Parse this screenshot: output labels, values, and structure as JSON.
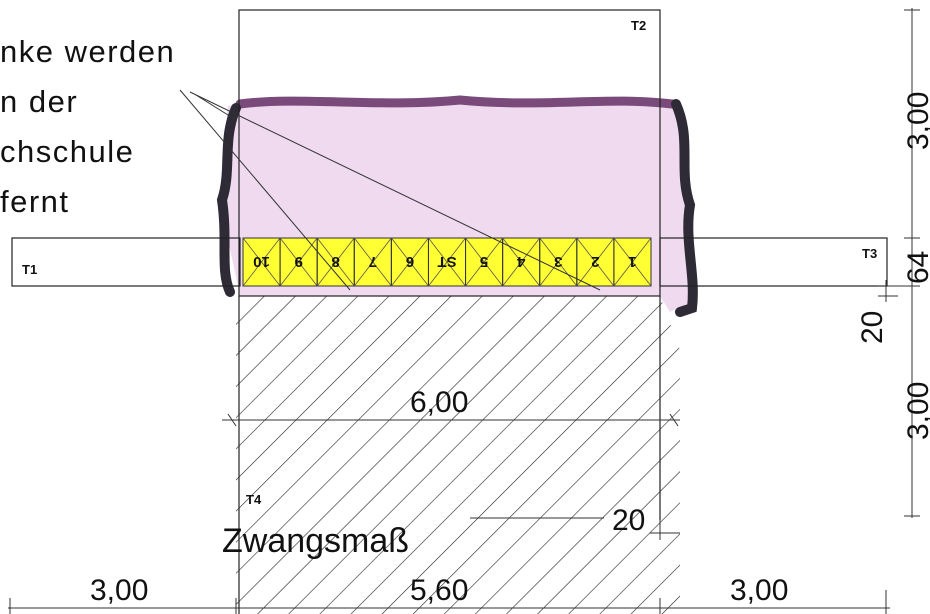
{
  "note_lines": [
    "nke werden",
    "n der",
    "chschule",
    "fernt"
  ],
  "tags": {
    "t1": "T1",
    "t2": "T2",
    "t3": "T3",
    "t4": "T4"
  },
  "cells": [
    "10",
    "9",
    "8",
    "7",
    "6",
    "ST",
    "5",
    "4",
    "3",
    "2",
    "1"
  ],
  "dimensions": {
    "right_top": "3,00",
    "right_strip": "64",
    "right_gap": "20",
    "right_bottom": "3,00",
    "inner_width": "6,00",
    "forced_gap": "20",
    "forced_label": "Zwangsmaß",
    "bottom_left": "3,00",
    "bottom_mid": "5,60",
    "bottom_right": "3,00"
  },
  "colors": {
    "marked_fill": "#ecd4ec",
    "marked_outline": "#2e2a36",
    "marked_top_edge": "#7a4a7a",
    "cell_fill": "#ffff33",
    "line": "#222222"
  }
}
